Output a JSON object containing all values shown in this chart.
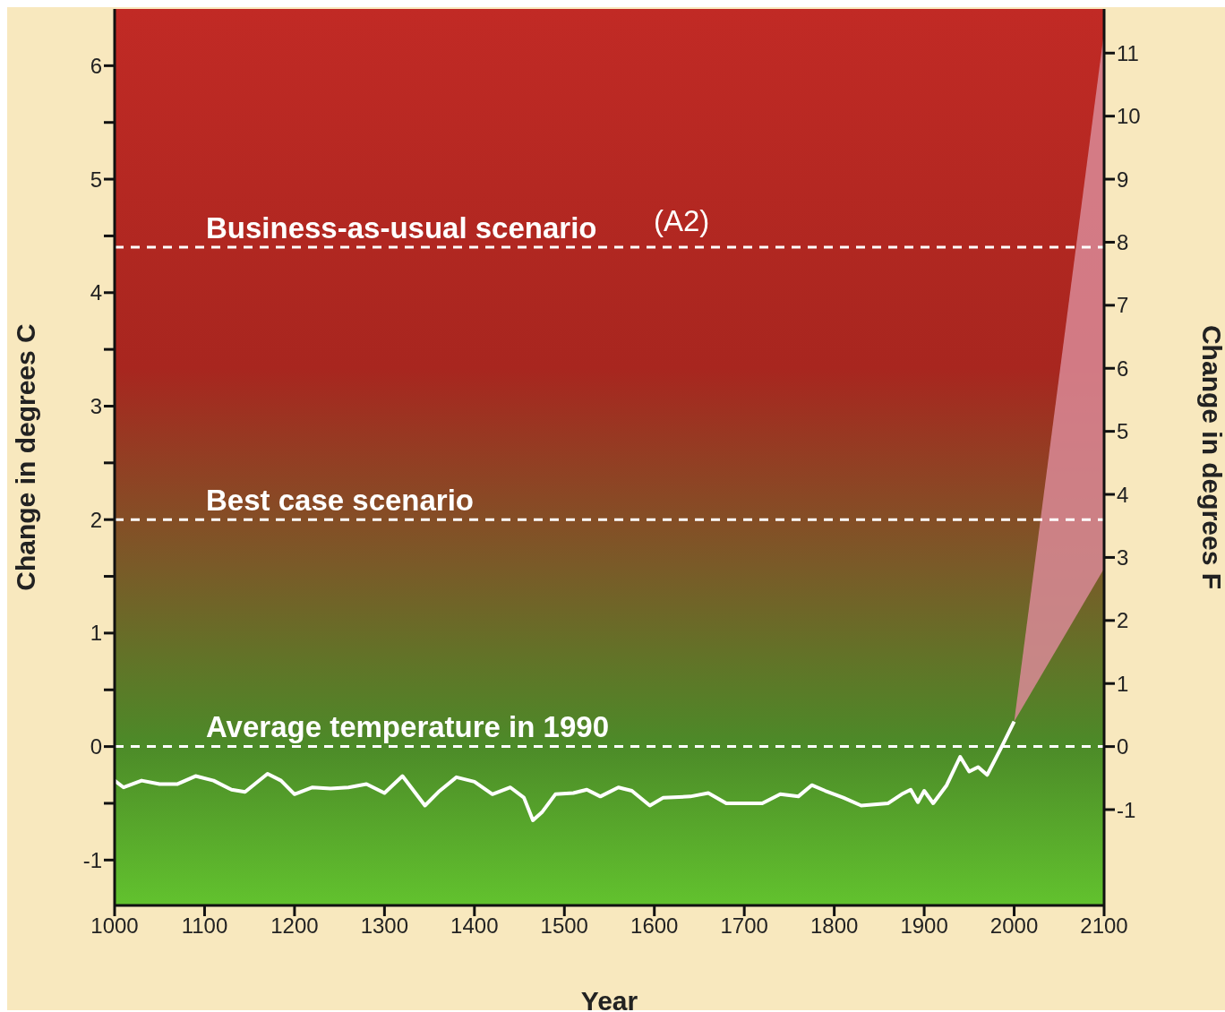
{
  "chart_data": {
    "type": "line",
    "xlabel": "Year",
    "ylabel": "Change in degrees C",
    "y2label": "Change in degrees F",
    "xlim": [
      1000,
      2100
    ],
    "xticks": [
      1000,
      1100,
      1200,
      1300,
      1400,
      1500,
      1600,
      1700,
      1800,
      1900,
      2000,
      2100
    ],
    "ylim": [
      -1.4,
      6.5
    ],
    "yticks": [
      -1,
      {
        "value": -0.5,
        "label": null
      },
      0,
      {
        "value": 0.5,
        "label": null
      },
      1,
      {
        "value": 1.5,
        "label": null
      },
      2,
      {
        "value": 2.5,
        "label": null
      },
      3,
      {
        "value": 3.5,
        "label": null
      },
      4,
      {
        "value": 4.5,
        "label": null
      },
      5,
      {
        "value": 5.5,
        "label": null
      },
      6
    ],
    "y2lim": [
      -2.52,
      11.7
    ],
    "y2ticks": [
      -1,
      0,
      1,
      2,
      3,
      4,
      5,
      6,
      7,
      8,
      9,
      10,
      11
    ],
    "grid": false,
    "legend": false,
    "marker": "none",
    "line_style": "solid",
    "series": [
      {
        "type": "line",
        "color": "#ffffff",
        "x": [
          1000,
          1010,
          1030,
          1050,
          1070,
          1090,
          1110,
          1130,
          1145,
          1170,
          1185,
          1200,
          1220,
          1240,
          1260,
          1280,
          1300,
          1320,
          1345,
          1360,
          1380,
          1400,
          1420,
          1440,
          1455,
          1465,
          1475,
          1490,
          1510,
          1525,
          1540,
          1560,
          1575,
          1595,
          1610,
          1640,
          1660,
          1680,
          1720,
          1740,
          1760,
          1775,
          1790,
          1810,
          1830,
          1860,
          1875,
          1885,
          1893,
          1900,
          1910,
          1925,
          1940,
          1950,
          1960,
          1970,
          1985,
          2000
        ],
        "values": [
          -0.3,
          -0.36,
          -0.3,
          -0.33,
          -0.33,
          -0.26,
          -0.3,
          -0.38,
          -0.4,
          -0.24,
          -0.3,
          -0.42,
          -0.36,
          -0.37,
          -0.36,
          -0.33,
          -0.41,
          -0.26,
          -0.52,
          -0.4,
          -0.27,
          -0.31,
          -0.42,
          -0.36,
          -0.45,
          -0.65,
          -0.58,
          -0.42,
          -0.41,
          -0.38,
          -0.44,
          -0.36,
          -0.39,
          -0.52,
          -0.45,
          -0.44,
          -0.41,
          -0.5,
          -0.5,
          -0.42,
          -0.44,
          -0.34,
          -0.39,
          -0.45,
          -0.52,
          -0.5,
          -0.42,
          -0.38,
          -0.49,
          -0.39,
          -0.5,
          -0.34,
          -0.09,
          -0.22,
          -0.18,
          -0.25,
          -0.02,
          0.22
        ]
      },
      {
        "type": "area",
        "color": "#d98a96",
        "x": [
          2000,
          2100
        ],
        "values": [
          null,
          null
        ],
        "lower": [
          0.22,
          1.57
        ],
        "upper": [
          0.22,
          6.3
        ]
      }
    ],
    "ref_lines": [
      {
        "axis": "y",
        "value": 4.4,
        "label": "Business-as-usual scenario",
        "color": "#ffffff",
        "line_style": "dashed"
      },
      {
        "axis": "y",
        "value": 2,
        "label": "Best case scenario",
        "color": "#ffffff",
        "line_style": "dashed"
      },
      {
        "axis": "y",
        "value": 0,
        "label": "Average temperature in 1990",
        "color": "#ffffff",
        "line_style": "dashed"
      }
    ],
    "annotations": [
      "(A2)"
    ]
  }
}
